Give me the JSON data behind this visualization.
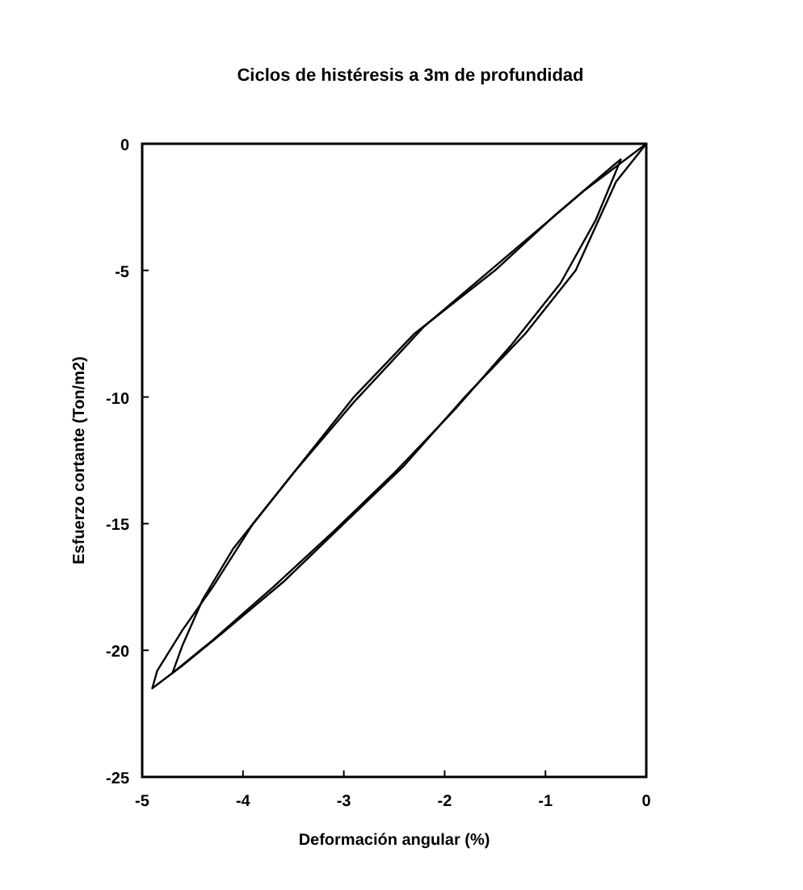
{
  "chart_data": {
    "type": "line",
    "title": "Ciclos de histéresis a 3m de profundidad",
    "xlabel": "Deformación angular (%)",
    "ylabel": "Esfuerzo cortante (Ton/m2)",
    "xlim": [
      -5,
      0
    ],
    "xticks": [
      -5,
      -4,
      -3,
      -2,
      -1,
      0
    ],
    "ylim": [
      -25,
      0
    ],
    "yticks": [
      -25,
      -20,
      -15,
      -10,
      -5,
      0
    ],
    "grid": false,
    "marker": "none",
    "line_style": "solid",
    "series": [
      {
        "color": "#000000",
        "x": [
          0,
          -0.3,
          -0.7,
          -1.2,
          -1.8,
          -2.4,
          -3.0,
          -3.6,
          -4.2,
          -4.6,
          -4.9,
          -4.85,
          -4.6,
          -4.3,
          -3.9,
          -3.4,
          -2.9,
          -2.3,
          -1.5,
          -0.9,
          -0.25
        ],
        "values": [
          0,
          -1.5,
          -5,
          -7.5,
          -10,
          -12.7,
          -15,
          -17.3,
          -19.3,
          -20.6,
          -21.5,
          -20.8,
          -19.2,
          -17.5,
          -15,
          -12.5,
          -10,
          -7.5,
          -5,
          -2.8,
          -0.6
        ]
      },
      {
        "color": "#000000",
        "x": [
          -0.25,
          -0.5,
          -0.85,
          -1.35,
          -1.9,
          -2.5,
          -3.1,
          -3.7,
          -4.3,
          -4.7,
          -4.6,
          -4.4,
          -4.1,
          -3.5,
          -2.9,
          -2.2,
          -1.4,
          -0.6,
          0
        ],
        "values": [
          -0.6,
          -3,
          -5.5,
          -8,
          -10.5,
          -13,
          -15.3,
          -17.5,
          -19.6,
          -20.9,
          -19.8,
          -18,
          -16,
          -13,
          -10.2,
          -7.2,
          -4.5,
          -1.8,
          0
        ]
      }
    ]
  }
}
